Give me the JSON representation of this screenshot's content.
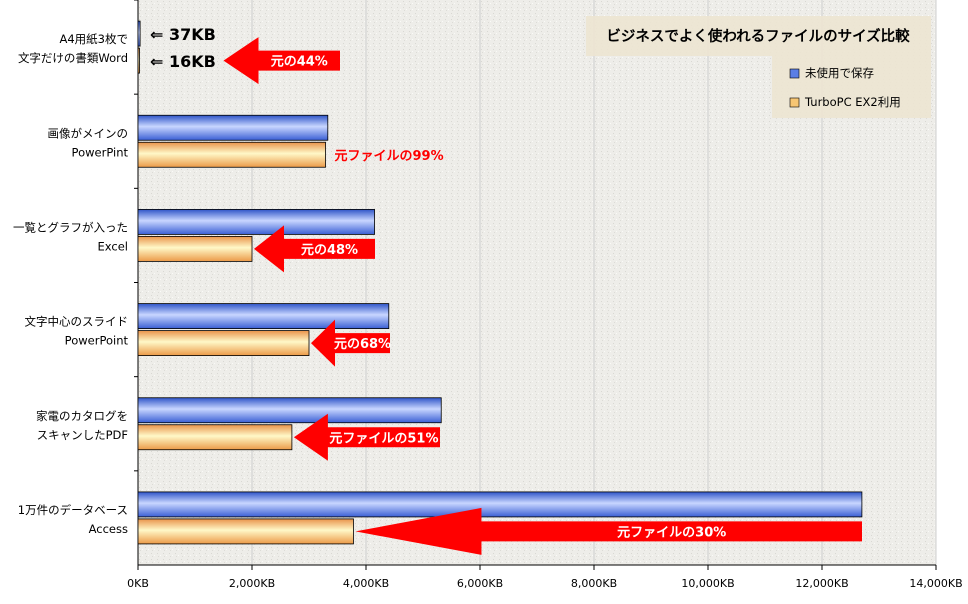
{
  "chart_data": {
    "type": "bar",
    "orientation": "horizontal",
    "title": "ビジネスでよく使われるファイルのサイズ比較",
    "categories": [
      [
        "A4用紙3枚で",
        "文字だけの書類Word"
      ],
      [
        "画像がメインの",
        "PowerPint"
      ],
      [
        "一覧とグラフが入った",
        "Excel"
      ],
      [
        "文字中心のスライド",
        "PowerPoint"
      ],
      [
        "家電のカタログを",
        "スキャンしたPDF"
      ],
      [
        "1万件のデータベース",
        "Access"
      ]
    ],
    "series": [
      {
        "name": "未使用で保存",
        "values": [
          37,
          3330,
          4150,
          4400,
          5320,
          12700
        ]
      },
      {
        "name": "TurboPC EX2利用",
        "values": [
          16,
          3290,
          2000,
          3000,
          2700,
          3780
        ]
      }
    ],
    "xlim": [
      0,
      14000
    ],
    "xticks": [
      "0KB",
      "2,000KB",
      "4,000KB",
      "6,000KB",
      "8,000KB",
      "10,000KB",
      "12,000KB",
      "14,000KB"
    ],
    "grid": true,
    "legend_position": "top-right",
    "first_category_labels": [
      "⇐ 37KB",
      "⇐ 16KB"
    ],
    "annotations": [
      "元の44%",
      "元ファイルの99%",
      "元の48%",
      "元の68%",
      "元ファイルの51%",
      "元ファイルの30%"
    ],
    "colors": {
      "series1": "#5a7ee6",
      "series2": "#f7c673",
      "arrow": "#ff0000",
      "plot_bg": "#efeeea",
      "legend_bg": "#ece4d2"
    }
  }
}
